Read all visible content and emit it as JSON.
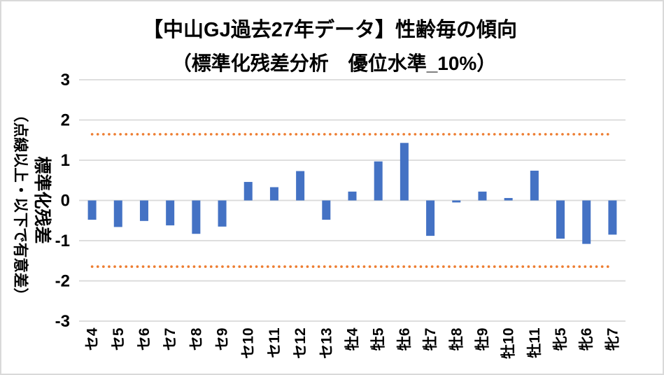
{
  "chart": {
    "title": "【中山GJ過去27年データ】性齢毎の傾向",
    "subtitle": "（標準化残差分析　優位水準_10%）",
    "y_axis_title_main": "標準化残差",
    "y_axis_title_sub": "（点線以上・以下で有意差）"
  },
  "chart_data": {
    "type": "bar",
    "title": "【中山GJ過去27年データ】性齢毎の傾向",
    "subtitle": "（標準化残差分析　優位水準_10%）",
    "ylabel": "標準化残差（点線以上・以下で有意差）",
    "categories": [
      "セ4",
      "セ5",
      "セ6",
      "セ7",
      "セ8",
      "セ9",
      "セ10",
      "セ11",
      "セ12",
      "セ13",
      "牡4",
      "牡5",
      "牡6",
      "牡7",
      "牡8",
      "牡9",
      "牡10",
      "牡11",
      "牝5",
      "牝6",
      "牝7"
    ],
    "values": [
      -0.48,
      -0.66,
      -0.51,
      -0.62,
      -0.83,
      -0.65,
      0.46,
      0.33,
      0.73,
      -0.48,
      0.22,
      0.97,
      1.43,
      -0.88,
      -0.05,
      0.22,
      0.06,
      0.74,
      -0.95,
      -1.08,
      -0.85
    ],
    "ylim": [
      -3,
      3
    ],
    "y_ticks": [
      3,
      2,
      1,
      0,
      -1,
      -2,
      -3
    ],
    "significance_lines": [
      1.645,
      -1.645
    ],
    "grid": true,
    "legend": false,
    "colors": {
      "bar": "#4472C4",
      "threshold_dotted": "#ED7D31",
      "gridline": "#D9D9D9",
      "text": "#000000",
      "border": "#D9D9D9",
      "background": "#FFFFFF"
    }
  }
}
